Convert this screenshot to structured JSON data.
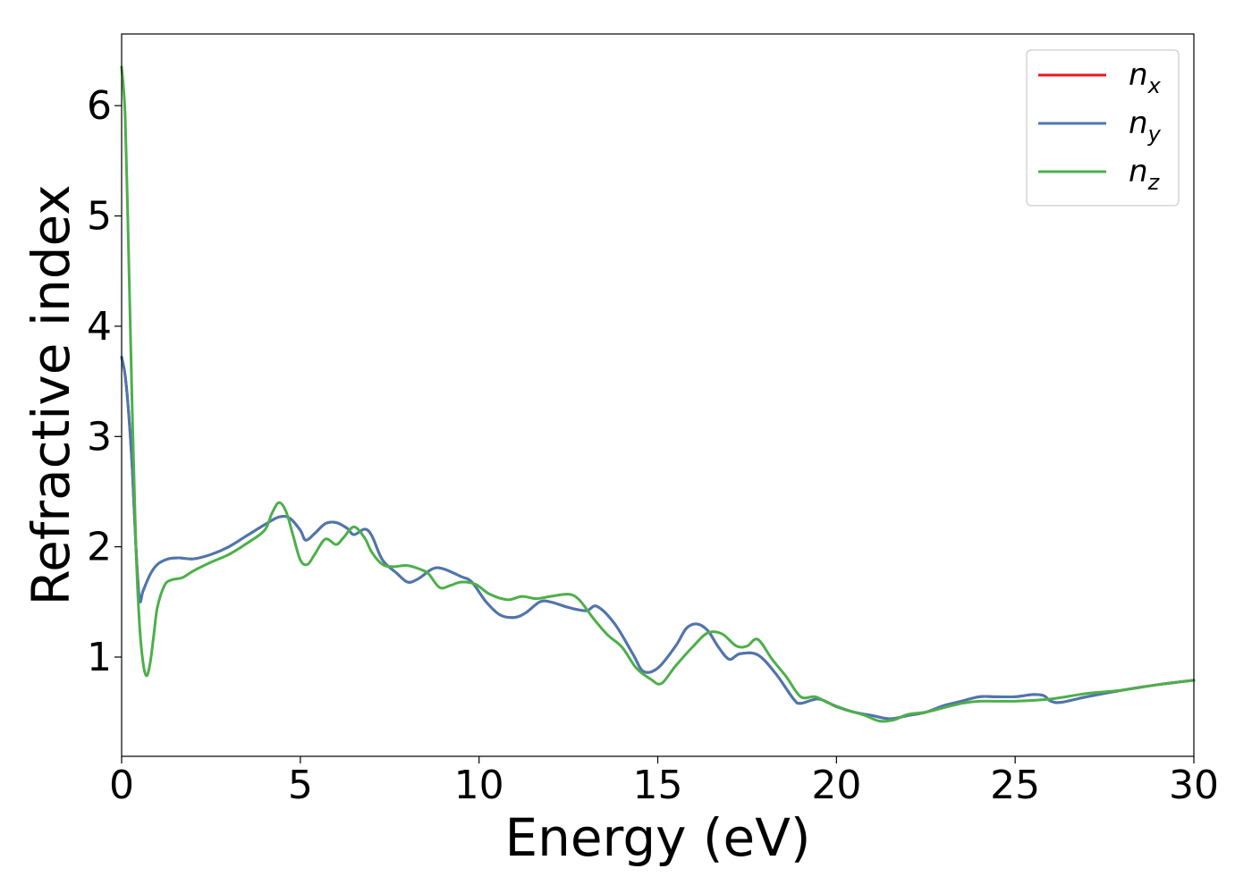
{
  "chart_data": {
    "type": "line",
    "xlabel": "Energy (eV)",
    "ylabel": "Refractive index",
    "xlim": [
      0,
      30
    ],
    "ylim": [
      0.1,
      6.65
    ],
    "xticks": [
      0,
      5,
      10,
      15,
      20,
      25,
      30
    ],
    "yticks": [
      1,
      2,
      3,
      4,
      5,
      6
    ],
    "grid": false,
    "legend_position": "top-right",
    "series": [
      {
        "name": "n_x",
        "label_base": "n",
        "label_sub": "x",
        "color": "#e41a1c",
        "x": [
          0,
          0.1,
          0.2,
          0.3,
          0.4,
          0.5,
          0.6,
          0.8,
          1.0,
          1.3,
          1.6,
          2.0,
          2.5,
          3.0,
          3.5,
          4.0,
          4.4,
          4.7,
          5.0,
          5.15,
          5.4,
          5.7,
          6.0,
          6.3,
          6.5,
          6.8,
          7.0,
          7.3,
          7.7,
          8.0,
          8.3,
          8.7,
          9.0,
          9.5,
          9.8,
          10.2,
          10.6,
          11.0,
          11.3,
          11.7,
          12.0,
          12.5,
          13.0,
          13.3,
          13.8,
          14.3,
          14.6,
          15.0,
          15.5,
          15.8,
          16.1,
          16.4,
          16.7,
          17.0,
          17.3,
          17.8,
          18.3,
          18.8,
          19.0,
          19.5,
          20.0,
          20.5,
          21.0,
          21.5,
          22.0,
          22.5,
          23.0,
          23.5,
          24.0,
          24.5,
          25.0,
          25.5,
          25.8,
          26.0,
          26.3,
          27.0,
          28.0,
          29.0,
          30.0
        ],
        "values": [
          3.72,
          3.55,
          3.2,
          2.7,
          2.0,
          1.52,
          1.6,
          1.75,
          1.84,
          1.89,
          1.9,
          1.89,
          1.93,
          2.0,
          2.1,
          2.2,
          2.27,
          2.26,
          2.15,
          2.06,
          2.12,
          2.21,
          2.22,
          2.17,
          2.11,
          2.16,
          2.1,
          1.88,
          1.76,
          1.68,
          1.71,
          1.8,
          1.8,
          1.73,
          1.68,
          1.5,
          1.38,
          1.36,
          1.4,
          1.5,
          1.5,
          1.45,
          1.42,
          1.46,
          1.3,
          1.03,
          0.87,
          0.9,
          1.1,
          1.26,
          1.3,
          1.24,
          1.09,
          0.98,
          1.03,
          1.02,
          0.85,
          0.62,
          0.58,
          0.62,
          0.55,
          0.5,
          0.47,
          0.44,
          0.47,
          0.5,
          0.56,
          0.6,
          0.64,
          0.64,
          0.64,
          0.66,
          0.65,
          0.6,
          0.59,
          0.64,
          0.7,
          0.75,
          0.79
        ]
      },
      {
        "name": "n_y",
        "label_base": "n",
        "label_sub": "y",
        "color": "#4a78b0",
        "x": [
          0,
          0.1,
          0.2,
          0.3,
          0.4,
          0.5,
          0.6,
          0.8,
          1.0,
          1.3,
          1.6,
          2.0,
          2.5,
          3.0,
          3.5,
          4.0,
          4.4,
          4.7,
          5.0,
          5.15,
          5.4,
          5.7,
          6.0,
          6.3,
          6.5,
          6.8,
          7.0,
          7.3,
          7.7,
          8.0,
          8.3,
          8.7,
          9.0,
          9.5,
          9.8,
          10.2,
          10.6,
          11.0,
          11.3,
          11.7,
          12.0,
          12.5,
          13.0,
          13.3,
          13.8,
          14.3,
          14.6,
          15.0,
          15.5,
          15.8,
          16.1,
          16.4,
          16.7,
          17.0,
          17.3,
          17.8,
          18.3,
          18.8,
          19.0,
          19.5,
          20.0,
          20.5,
          21.0,
          21.5,
          22.0,
          22.5,
          23.0,
          23.5,
          24.0,
          24.5,
          25.0,
          25.5,
          25.8,
          26.0,
          26.3,
          27.0,
          28.0,
          29.0,
          30.0
        ],
        "values": [
          3.72,
          3.55,
          3.2,
          2.7,
          2.0,
          1.52,
          1.6,
          1.75,
          1.84,
          1.89,
          1.9,
          1.89,
          1.93,
          2.0,
          2.1,
          2.2,
          2.27,
          2.26,
          2.15,
          2.06,
          2.12,
          2.21,
          2.22,
          2.17,
          2.11,
          2.16,
          2.1,
          1.88,
          1.76,
          1.68,
          1.71,
          1.8,
          1.8,
          1.73,
          1.68,
          1.5,
          1.38,
          1.36,
          1.4,
          1.5,
          1.5,
          1.45,
          1.42,
          1.46,
          1.3,
          1.03,
          0.87,
          0.9,
          1.1,
          1.26,
          1.3,
          1.24,
          1.09,
          0.98,
          1.03,
          1.02,
          0.85,
          0.62,
          0.58,
          0.62,
          0.55,
          0.5,
          0.47,
          0.44,
          0.47,
          0.5,
          0.56,
          0.6,
          0.64,
          0.64,
          0.64,
          0.66,
          0.65,
          0.6,
          0.59,
          0.64,
          0.7,
          0.75,
          0.79
        ]
      },
      {
        "name": "n_z",
        "label_base": "n",
        "label_sub": "z",
        "color": "#4daf4a",
        "x": [
          0,
          0.1,
          0.2,
          0.3,
          0.4,
          0.5,
          0.6,
          0.7,
          0.8,
          0.9,
          1.0,
          1.2,
          1.4,
          1.7,
          2.0,
          2.5,
          3.0,
          3.5,
          4.0,
          4.2,
          4.4,
          4.6,
          4.8,
          5.0,
          5.2,
          5.4,
          5.7,
          6.0,
          6.2,
          6.5,
          6.8,
          7.0,
          7.3,
          7.6,
          8.0,
          8.4,
          8.6,
          8.9,
          9.2,
          9.5,
          9.9,
          10.3,
          10.8,
          11.2,
          11.6,
          12.0,
          12.5,
          12.8,
          13.2,
          13.6,
          14.0,
          14.4,
          14.8,
          15.1,
          15.5,
          16.0,
          16.4,
          16.8,
          17.2,
          17.5,
          17.8,
          18.2,
          18.6,
          19.0,
          19.4,
          19.8,
          20.3,
          20.8,
          21.2,
          21.6,
          22.0,
          22.5,
          23.0,
          23.5,
          24.0,
          25.0,
          26.0,
          27.0,
          28.0,
          29.0,
          30.0
        ],
        "values": [
          6.35,
          5.9,
          4.6,
          3.2,
          2.0,
          1.3,
          0.95,
          0.83,
          0.95,
          1.2,
          1.45,
          1.65,
          1.7,
          1.72,
          1.78,
          1.86,
          1.93,
          2.03,
          2.15,
          2.3,
          2.4,
          2.32,
          2.1,
          1.88,
          1.84,
          1.93,
          2.07,
          2.02,
          2.08,
          2.18,
          2.08,
          1.95,
          1.84,
          1.82,
          1.83,
          1.79,
          1.75,
          1.63,
          1.65,
          1.68,
          1.66,
          1.57,
          1.52,
          1.55,
          1.53,
          1.55,
          1.57,
          1.52,
          1.35,
          1.2,
          1.09,
          0.9,
          0.8,
          0.76,
          0.92,
          1.1,
          1.22,
          1.21,
          1.1,
          1.1,
          1.16,
          0.98,
          0.82,
          0.64,
          0.64,
          0.58,
          0.52,
          0.47,
          0.42,
          0.43,
          0.48,
          0.5,
          0.54,
          0.58,
          0.6,
          0.6,
          0.62,
          0.67,
          0.7,
          0.75,
          0.79
        ]
      }
    ]
  }
}
